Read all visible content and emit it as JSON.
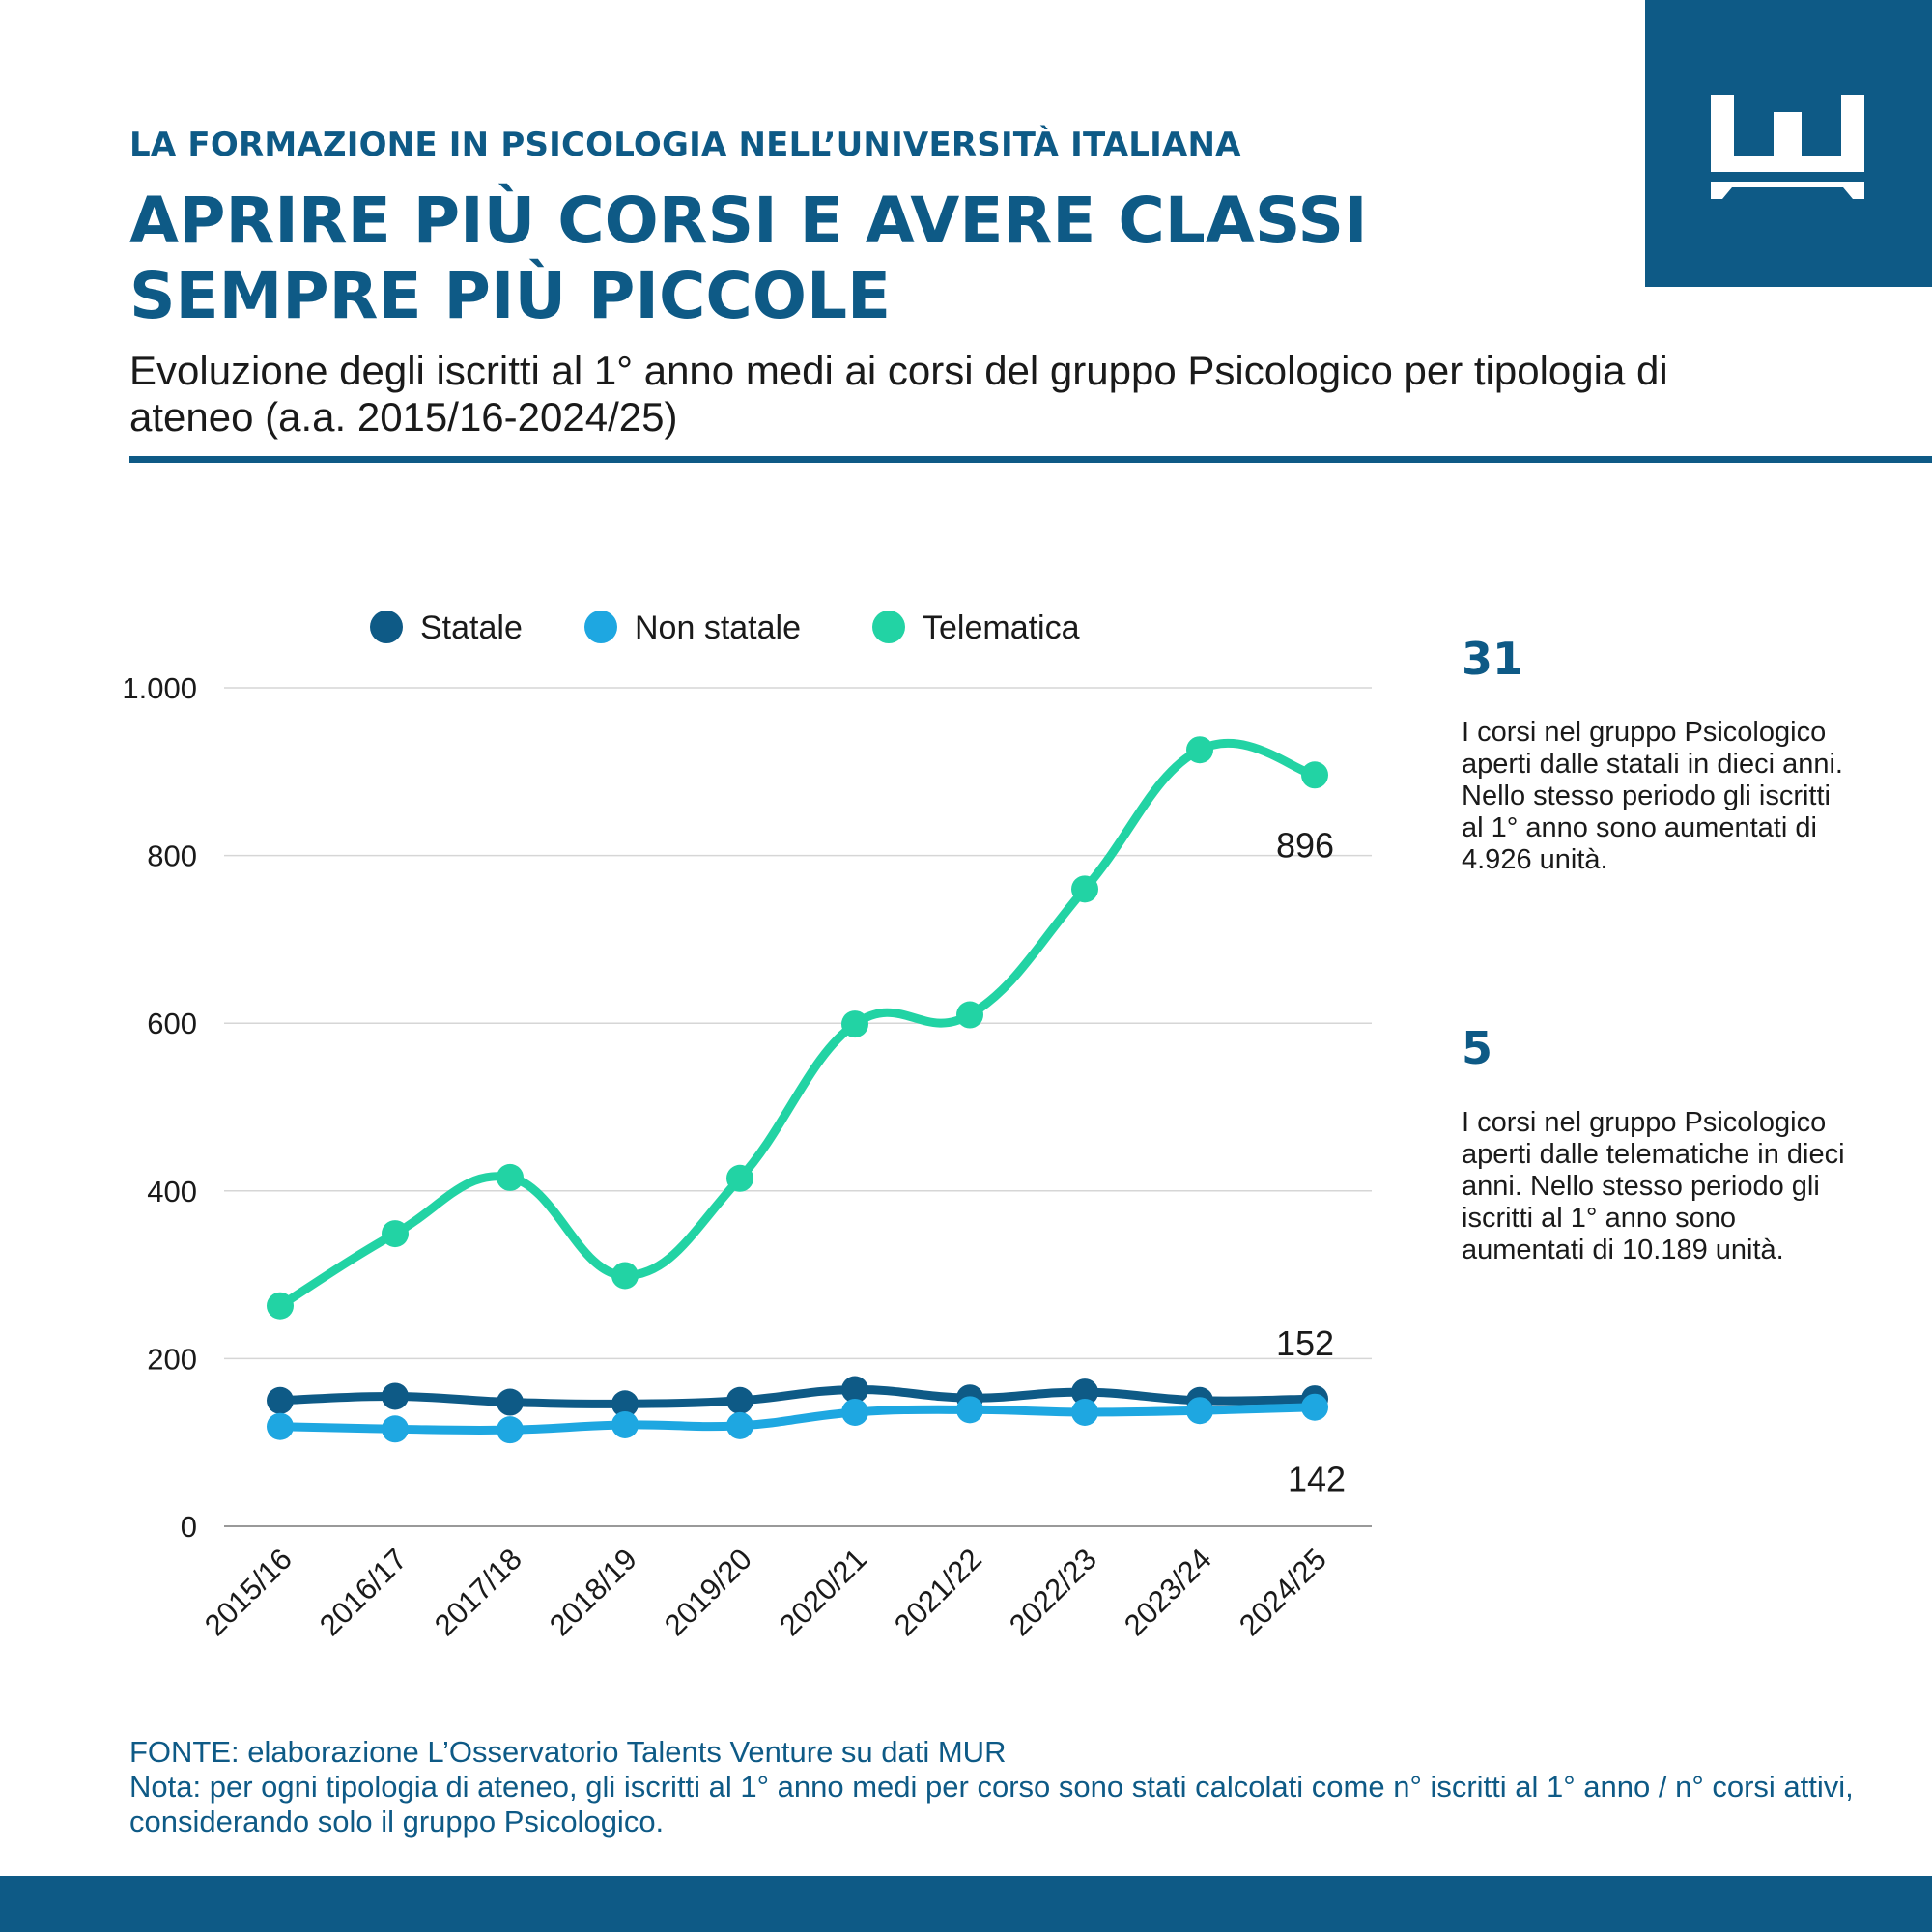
{
  "header": {
    "kicker": "LA FORMAZIONE IN PSICOLOGIA NELL’UNIVERSITÀ ITALIANA",
    "title": "APRIRE PIÙ CORSI E AVERE CLASSI SEMPRE PIÙ PICCOLE",
    "subtitle": "Evoluzione degli iscritti al 1° anno medi ai corsi del gruppo Psicologico per tipologia di ateneo (a.a. 2015/16-2024/25)"
  },
  "brand": {
    "color": "#0e5a86",
    "logo_icon": "crown-logo-icon"
  },
  "chart_data": {
    "type": "line",
    "categories": [
      "2015/16",
      "2016/17",
      "2017/18",
      "2018/19",
      "2019/20",
      "2020/21",
      "2021/22",
      "2022/23",
      "2023/24",
      "2024/25"
    ],
    "series": [
      {
        "name": "Statale",
        "color": "#0e5a86",
        "values": [
          150,
          155,
          148,
          146,
          150,
          163,
          153,
          160,
          150,
          152
        ]
      },
      {
        "name": "Non statale",
        "color": "#1ea7e1",
        "values": [
          119,
          116,
          115,
          121,
          120,
          136,
          139,
          136,
          138,
          142
        ]
      },
      {
        "name": "Telematica",
        "color": "#22d3a4",
        "values": [
          263,
          349,
          416,
          299,
          415,
          599,
          610,
          760,
          926,
          896
        ]
      }
    ],
    "ylim": [
      0,
      1000
    ],
    "yticks": [
      0,
      200,
      400,
      600,
      800,
      1000
    ],
    "ytick_labels": [
      "0",
      "200",
      "400",
      "600",
      "800",
      "1.000"
    ],
    "grid": true,
    "legend": "top",
    "data_labels": [
      {
        "series": "Telematica",
        "category": "2024/25",
        "text": "896"
      },
      {
        "series": "Statale",
        "category": "2024/25",
        "text": "152"
      },
      {
        "series": "Non statale",
        "category": "2024/25",
        "text": "142"
      }
    ]
  },
  "stats": [
    {
      "number": "31",
      "text": "I corsi nel gruppo Psicologico aperti dalle statali in dieci anni. Nello stesso periodo gli iscritti al 1° anno sono aumentati di 4.926 unità."
    },
    {
      "number": "5",
      "text": "I corsi nel gruppo Psicologico aperti dalle telematiche in dieci anni. Nello stesso periodo gli iscritti al 1° anno sono aumentati di 10.189 unità."
    }
  ],
  "footer": {
    "source": "FONTE: elaborazione L’Osservatorio Talents Venture su dati MUR",
    "note": "Nota: per ogni tipologia di ateneo, gli iscritti al 1° anno medi per corso sono stati calcolati come n° iscritti al 1° anno / n° corsi attivi, considerando solo il gruppo Psicologico."
  }
}
